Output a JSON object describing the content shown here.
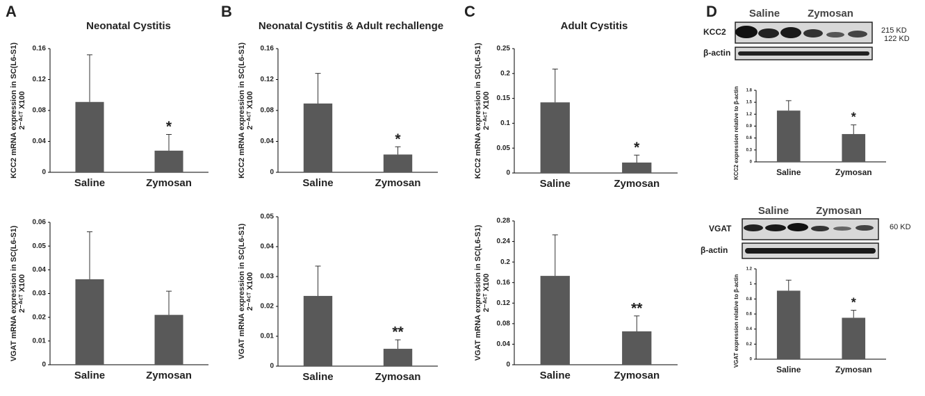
{
  "panel_labels": [
    "A",
    "B",
    "C",
    "D"
  ],
  "blots": [
    {
      "groups": [
        "Saline",
        "Zymosan"
      ],
      "rows": [
        "KCC2",
        "β-actin"
      ],
      "sizes": [
        "215 KD",
        "122 KD"
      ]
    },
    {
      "groups": [
        "Saline",
        "Zymosan"
      ],
      "rows": [
        "VGAT",
        "β-actin"
      ],
      "sizes": [
        "60 KD"
      ]
    }
  ],
  "chart_data": [
    {
      "type": "bar",
      "title": "Neonatal Cystitis",
      "ylabel": "KCC2 mRNA expression  in SC(L6-S1)",
      "ylabel2": "2⁻ᐞᶜᵀ X100",
      "categories": [
        "Saline",
        "Zymosan"
      ],
      "values": [
        0.091,
        0.028
      ],
      "errors": [
        0.061,
        0.021
      ],
      "annotation": "*",
      "color": "#595959",
      "ylim": [
        0,
        0.16
      ],
      "yticks": [
        0,
        0.04,
        0.08,
        0.12,
        0.16
      ],
      "grid": false
    },
    {
      "type": "bar",
      "ylabel": "VGAT mRNA expression  in SC(L6-S1)",
      "ylabel2": "2⁻ᐞᶜᵀ X100",
      "categories": [
        "Saline",
        "Zymosan"
      ],
      "values": [
        0.036,
        0.021
      ],
      "errors": [
        0.02,
        0.01
      ],
      "color": "#595959",
      "ylim": [
        0,
        0.06
      ],
      "yticks": [
        0,
        0.01,
        0.02,
        0.03,
        0.04,
        0.05,
        0.06
      ],
      "grid": false
    },
    {
      "type": "bar",
      "title": "Neonatal Cystitis & Adult rechallenge",
      "ylabel": "KCC2 mRNA expression  in SC(L6-S1)",
      "ylabel2": "2⁻ᐞᶜᵀ X100",
      "categories": [
        "Saline",
        "Zymosan"
      ],
      "values": [
        0.089,
        0.023
      ],
      "errors": [
        0.039,
        0.01
      ],
      "annotation": "*",
      "color": "#595959",
      "ylim": [
        0,
        0.16
      ],
      "yticks": [
        0,
        0.04,
        0.08,
        0.12,
        0.16
      ],
      "grid": false
    },
    {
      "type": "bar",
      "ylabel": "VGAT mRNA expression  in SC(L6-S1)",
      "ylabel2": "2⁻ᐞᶜᵀ X100",
      "categories": [
        "Saline",
        "Zymosan"
      ],
      "values": [
        0.0235,
        0.0058
      ],
      "errors": [
        0.01,
        0.003
      ],
      "annotation": "**",
      "color": "#595959",
      "ylim": [
        0,
        0.05
      ],
      "yticks": [
        0,
        0.01,
        0.02,
        0.03,
        0.04,
        0.05
      ],
      "grid": false
    },
    {
      "type": "bar",
      "title": "Adult Cystitis",
      "ylabel": "KCC2 mRNA expression  in SC(L6-S1)",
      "ylabel2": "2⁻ᐞᶜᵀ X100",
      "categories": [
        "Saline",
        "Zymosan"
      ],
      "values": [
        0.142,
        0.021
      ],
      "errors": [
        0.067,
        0.015
      ],
      "annotation": "*",
      "color": "#595959",
      "ylim": [
        0,
        0.25
      ],
      "yticks": [
        0,
        0.05,
        0.1,
        0.15,
        0.2,
        0.25
      ],
      "grid": false
    },
    {
      "type": "bar",
      "ylabel": "VGAT mRNA expression  in SC(L6-S1)",
      "ylabel2": "2⁻ᐞᶜᵀ X100",
      "categories": [
        "Saline",
        "Zymosan"
      ],
      "values": [
        0.173,
        0.065
      ],
      "errors": [
        0.08,
        0.03
      ],
      "annotation": "**",
      "color": "#595959",
      "ylim": [
        0,
        0.28
      ],
      "yticks": [
        0,
        0.04,
        0.08,
        0.12,
        0.16,
        0.2,
        0.24,
        0.28
      ],
      "grid": false
    },
    {
      "type": "bar",
      "ylabel": "KCC2 expression relative to β-actin",
      "categories": [
        "Saline",
        "Zymosan"
      ],
      "values": [
        1.29,
        0.7
      ],
      "errors": [
        0.25,
        0.23
      ],
      "annotation": "*",
      "color": "#595959",
      "ylim": [
        0,
        1.8
      ],
      "yticks": [
        0,
        0.3,
        0.6,
        0.9,
        1.2,
        1.5,
        1.8
      ],
      "grid": false
    },
    {
      "type": "bar",
      "ylabel": "VGAT expression relative to β-actin",
      "categories": [
        "Saline",
        "Zymosan"
      ],
      "values": [
        0.91,
        0.55
      ],
      "errors": [
        0.14,
        0.1
      ],
      "annotation": "*",
      "color": "#595959",
      "ylim": [
        0,
        1.2
      ],
      "yticks": [
        0,
        0.2,
        0.4,
        0.6,
        0.8,
        1,
        1.2
      ],
      "grid": false
    }
  ]
}
